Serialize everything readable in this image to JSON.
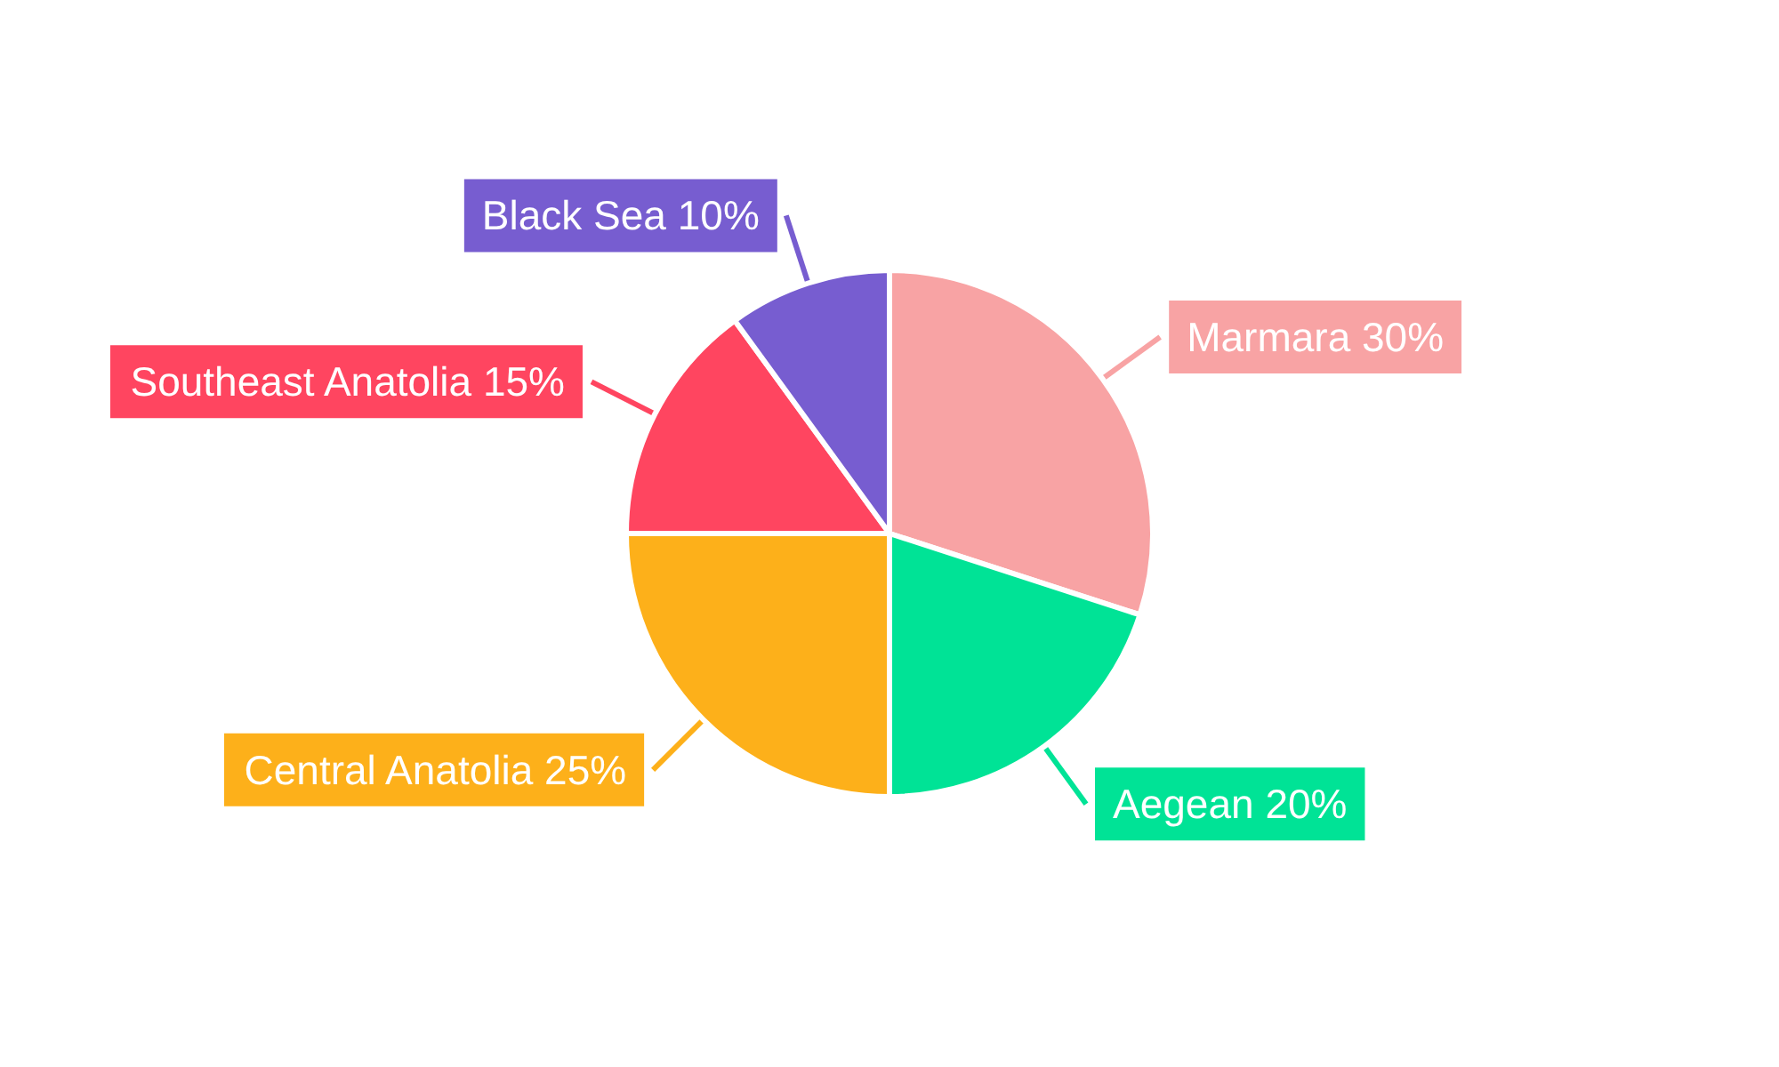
{
  "chart_data": {
    "type": "pie",
    "categories": [
      "Marmara",
      "Aegean",
      "Central Anatolia",
      "Southeast Anatolia",
      "Black Sea"
    ],
    "values": [
      30,
      20,
      25,
      15,
      10
    ],
    "colors": [
      "#f8a3a4",
      "#00e396",
      "#fdb01a",
      "#ff4560",
      "#775dd0"
    ],
    "value_labels": [
      "30%",
      "20%",
      "25%",
      "15%",
      "10%"
    ],
    "legend": false
  }
}
